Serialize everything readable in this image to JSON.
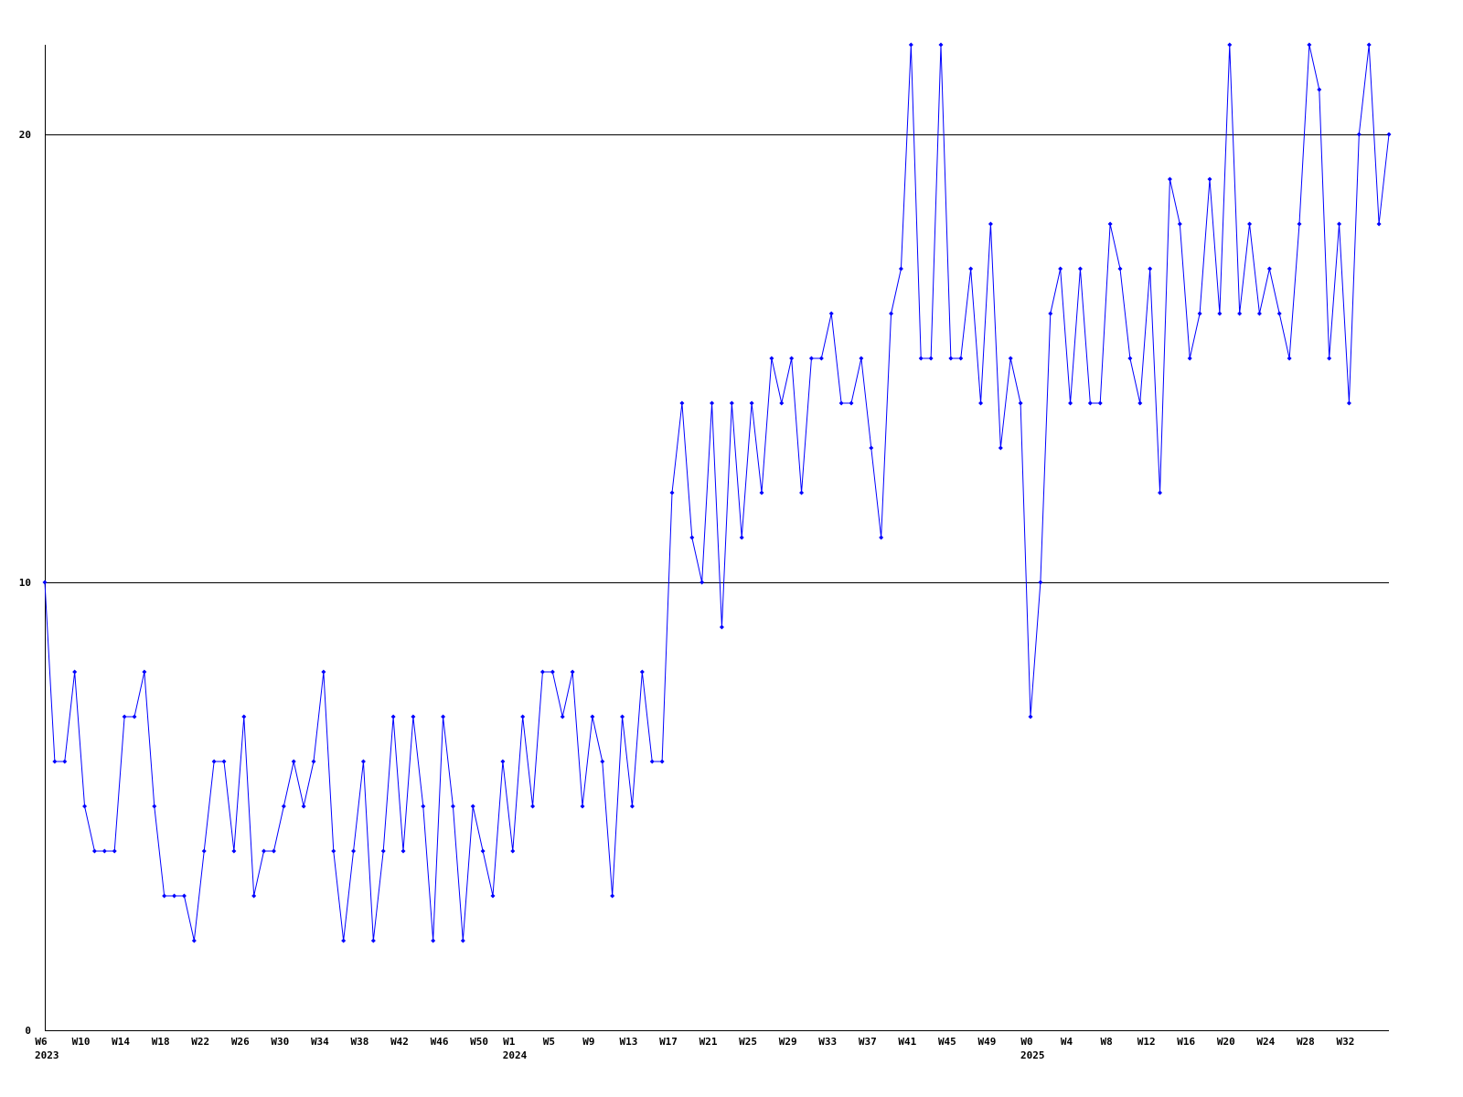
{
  "chart_data": {
    "type": "line",
    "categories": [
      "W6",
      null,
      null,
      null,
      "W10",
      null,
      null,
      null,
      "W14",
      null,
      null,
      null,
      "W18",
      null,
      null,
      null,
      "W22",
      null,
      null,
      null,
      "W26",
      null,
      null,
      null,
      "W30",
      null,
      null,
      null,
      "W34",
      null,
      null,
      null,
      "W38",
      null,
      null,
      null,
      "W42",
      null,
      null,
      null,
      "W46",
      null,
      null,
      null,
      "W50",
      null,
      null,
      "W1",
      null,
      null,
      null,
      "W5",
      null,
      null,
      null,
      "W9",
      null,
      null,
      null,
      "W13",
      null,
      null,
      null,
      "W17",
      null,
      null,
      null,
      "W21",
      null,
      null,
      null,
      "W25",
      null,
      null,
      null,
      "W29",
      null,
      null,
      null,
      "W33",
      null,
      null,
      null,
      "W37",
      null,
      null,
      null,
      "W41",
      null,
      null,
      null,
      "W45",
      null,
      null,
      null,
      "W49",
      null,
      null,
      null,
      "W0",
      null,
      null,
      null,
      "W4",
      null,
      null,
      null,
      "W8",
      null,
      null,
      null,
      "W12",
      null,
      null,
      null,
      "W16",
      null,
      null,
      null,
      "W20",
      null,
      null,
      null,
      "W24",
      null,
      null,
      null,
      "W28",
      null,
      null,
      null,
      "W32",
      null,
      null,
      null,
      null
    ],
    "category_years": [
      "2023",
      null,
      null,
      null,
      null,
      null,
      null,
      null,
      null,
      null,
      null,
      null,
      null,
      null,
      null,
      null,
      null,
      null,
      null,
      null,
      null,
      null,
      null,
      null,
      null,
      null,
      null,
      null,
      null,
      null,
      null,
      null,
      null,
      null,
      null,
      null,
      null,
      null,
      null,
      null,
      null,
      null,
      null,
      null,
      null,
      null,
      null,
      "2024",
      null,
      null,
      null,
      null,
      null,
      null,
      null,
      null,
      null,
      null,
      null,
      null,
      null,
      null,
      null,
      null,
      null,
      null,
      null,
      null,
      null,
      null,
      null,
      null,
      null,
      null,
      null,
      null,
      null,
      null,
      null,
      null,
      null,
      null,
      null,
      null,
      null,
      null,
      null,
      null,
      null,
      null,
      null,
      null,
      null,
      null,
      null,
      null,
      null,
      null,
      null,
      "2025",
      null,
      null,
      null,
      null,
      null,
      null,
      null,
      null,
      null,
      null,
      null,
      null,
      null,
      null,
      null,
      null,
      null,
      null,
      null,
      null,
      null,
      null,
      null,
      null,
      null,
      null,
      null,
      null,
      null,
      null,
      null,
      null,
      null,
      null,
      null,
      null
    ],
    "values": [
      10,
      6,
      6,
      8,
      5,
      4,
      4,
      4,
      7,
      7,
      8,
      5,
      3,
      3,
      3,
      2,
      4,
      6,
      6,
      4,
      7,
      3,
      4,
      4,
      5,
      6,
      5,
      6,
      8,
      4,
      2,
      4,
      6,
      2,
      4,
      7,
      4,
      7,
      5,
      2,
      7,
      5,
      2,
      5,
      4,
      3,
      6,
      4,
      7,
      5,
      8,
      8,
      7,
      8,
      5,
      7,
      6,
      3,
      7,
      5,
      8,
      6,
      6,
      12,
      14,
      11,
      10,
      14,
      9,
      14,
      11,
      14,
      12,
      15,
      14,
      15,
      12,
      15,
      15,
      16,
      14,
      14,
      15,
      13,
      11,
      16,
      17,
      22,
      15,
      15,
      22,
      15,
      15,
      17,
      14,
      18,
      13,
      15,
      14,
      7,
      10,
      16,
      17,
      14,
      17,
      14,
      14,
      18,
      17,
      15,
      14,
      17,
      12,
      19,
      18,
      15,
      16,
      19,
      16,
      22,
      16,
      18,
      16,
      17,
      16,
      15,
      18,
      22,
      21,
      15,
      18,
      14,
      20,
      22,
      18,
      20
    ],
    "color": "#0000ff",
    "ylim": [
      0,
      22
    ],
    "yticks": [
      0,
      10,
      20
    ],
    "grid": true
  }
}
